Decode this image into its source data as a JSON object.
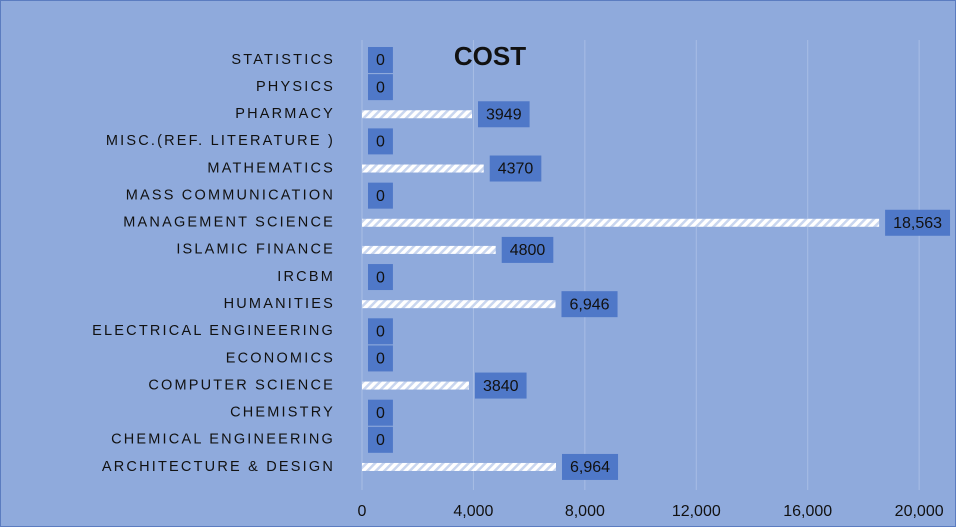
{
  "chart_data": {
    "type": "bar",
    "orientation": "horizontal",
    "title": "COST",
    "categories": [
      "STATISTICS",
      "PHYSICS",
      "PHARMACY",
      "MISC.(REF. LITERATURE )",
      "MATHEMATICS",
      "MASS COMMUNICATION",
      "MANAGEMENT SCIENCE",
      "ISLAMIC FINANCE",
      "IRCBM",
      "HUMANITIES",
      "ELECTRICAL ENGINEERING",
      "ECONOMICS",
      "COMPUTER SCIENCE",
      "CHEMISTRY",
      "CHEMICAL ENGINEERING",
      "ARCHITECTURE & DESIGN"
    ],
    "values": [
      0,
      0,
      3949,
      0,
      4370,
      0,
      18563,
      4800,
      0,
      6946,
      0,
      0,
      3840,
      0,
      0,
      6964
    ],
    "value_labels": [
      "0",
      "0",
      "3949",
      "0",
      "4370",
      "0",
      "18,563",
      "4800",
      "0",
      "6,946",
      "0",
      "0",
      "3840",
      "0",
      "0",
      "6,964"
    ],
    "color": "#ffffff",
    "xlim": [
      0,
      21000
    ],
    "xticks": [
      0,
      {
        "value": 4000,
        "label": "4,000"
      },
      {
        "value": 8000,
        "label": "8,000"
      },
      {
        "value": 12000,
        "label": "12,000"
      },
      {
        "value": 16000,
        "label": "16,000"
      },
      {
        "value": 20000,
        "label": "20,000"
      }
    ],
    "grid": true
  }
}
